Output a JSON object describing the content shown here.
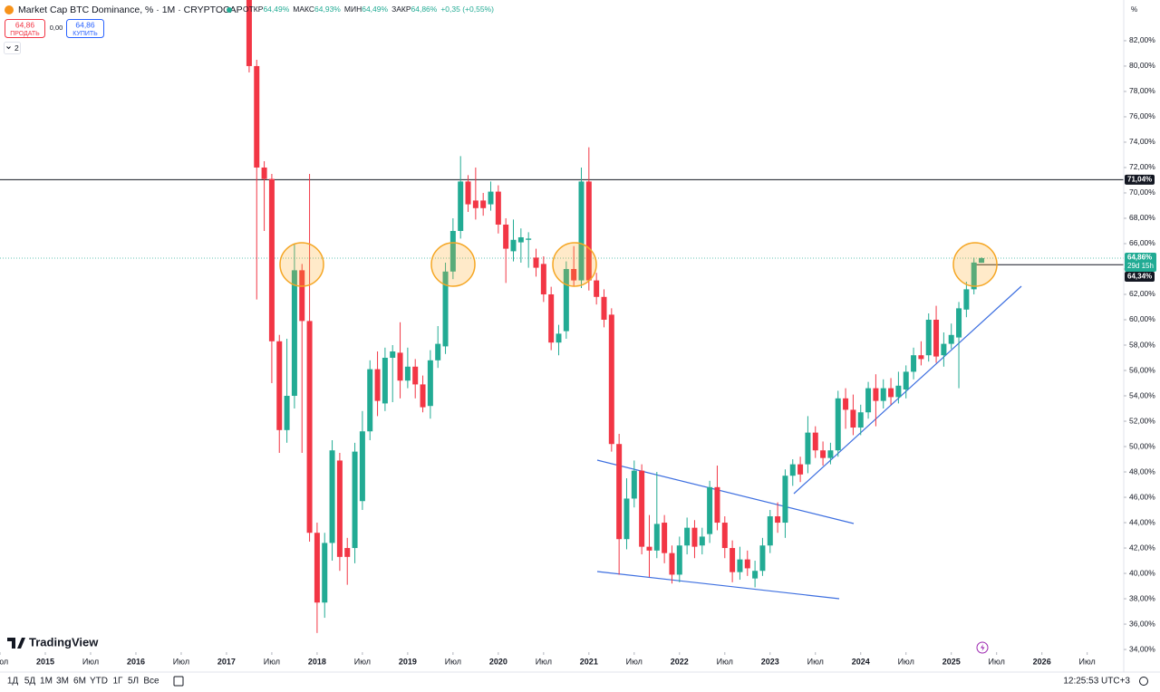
{
  "header": {
    "title": "Market Cap BTC Dominance, % · 1M · CRYPTOCAP",
    "ohlc": [
      {
        "label": "ОТКР",
        "value": "64,49%"
      },
      {
        "label": "МАКС",
        "value": "64,93%"
      },
      {
        "label": "МИН",
        "value": "64,49%"
      },
      {
        "label": "ЗАКР",
        "value": "64,86%"
      }
    ],
    "change": "+0,35 (+0,55%)"
  },
  "trade": {
    "sell_price": "64,86",
    "sell": "ПРОДАТЬ",
    "spread": "0,00",
    "buy_price": "64,86",
    "buy": "КУПИТЬ"
  },
  "indicators_count": 2,
  "scale_mode": "%",
  "logo": "TradingView",
  "toolbar": {
    "ranges": [
      "1Д",
      "5Д",
      "1М",
      "3М",
      "6М",
      "YTD",
      "1Г",
      "5Л",
      "Все"
    ],
    "clock": "12:25:53 UTC+3"
  },
  "chart_data": {
    "type": "candlestick",
    "up_color": "#22ab94",
    "down_color": "#f23645",
    "grid": false,
    "x": [
      "2017-04",
      "2017-05",
      "2017-06",
      "2017-07",
      "2017-08",
      "2017-09",
      "2017-10",
      "2017-11",
      "2017-12",
      "2018-01",
      "2018-02",
      "2018-03",
      "2018-04",
      "2018-05",
      "2018-06",
      "2018-07",
      "2018-08",
      "2018-09",
      "2018-10",
      "2018-11",
      "2018-12",
      "2019-01",
      "2019-02",
      "2019-03",
      "2019-04",
      "2019-05",
      "2019-06",
      "2019-07",
      "2019-08",
      "2019-09",
      "2019-10",
      "2019-11",
      "2019-12",
      "2020-01",
      "2020-02",
      "2020-03",
      "2020-04",
      "2020-05",
      "2020-06",
      "2020-07",
      "2020-08",
      "2020-09",
      "2020-10",
      "2020-11",
      "2020-12",
      "2021-01",
      "2021-02",
      "2021-03",
      "2021-04",
      "2021-05",
      "2021-06",
      "2021-07",
      "2021-08",
      "2021-09",
      "2021-10",
      "2021-11",
      "2021-12",
      "2022-01",
      "2022-02",
      "2022-03",
      "2022-04",
      "2022-05",
      "2022-06",
      "2022-07",
      "2022-08",
      "2022-09",
      "2022-10",
      "2022-11",
      "2022-12",
      "2023-01",
      "2023-02",
      "2023-03",
      "2023-04",
      "2023-05",
      "2023-06",
      "2023-07",
      "2023-08",
      "2023-09",
      "2023-10",
      "2023-11",
      "2023-12",
      "2024-01",
      "2024-02",
      "2024-03",
      "2024-04",
      "2024-05",
      "2024-06",
      "2024-07",
      "2024-08",
      "2024-09",
      "2024-10",
      "2024-11",
      "2024-12",
      "2025-01",
      "2025-02",
      "2025-03",
      "2025-04",
      "2025-05"
    ],
    "open": [
      85.5,
      80,
      72,
      71.1,
      58.3,
      51.3,
      54,
      63.9,
      59.9,
      43.2,
      37.7,
      42.4,
      48.9,
      42,
      42,
      45.7,
      51.2,
      56.1,
      53.4,
      57,
      57.4,
      55.2,
      56.3,
      54.9,
      53.2,
      56.8,
      57.9,
      63.8,
      67,
      70.9,
      69.4,
      69.4,
      69.1,
      70.1,
      67.5,
      65.4,
      66.1,
      66.3,
      64.9,
      64.4,
      62,
      58.2,
      59.1,
      64,
      63.1,
      70.9,
      63.1,
      61.8,
      60.4,
      50.2,
      42.7,
      45.9,
      48.1,
      42.1,
      41.8,
      44,
      41.6,
      39.9,
      42.2,
      43.6,
      42.2,
      43.1,
      46.8,
      44,
      42,
      40.1,
      41.1,
      39.6,
      40.2,
      42.2,
      44.5,
      44,
      47.7,
      48.6,
      48.6,
      51.1,
      49.7,
      49.1,
      49.7,
      53.8,
      52.9,
      51.5,
      52.7,
      54.6,
      53.6,
      54.6,
      53.9,
      54.5,
      55.9,
      57.2,
      57.2,
      60,
      57.2,
      58.1,
      58.6,
      60.8,
      62.4,
      64.49
    ],
    "high": [
      86.5,
      80.5,
      72.5,
      71.5,
      58.8,
      58.5,
      66,
      64.4,
      71.5,
      44,
      43.2,
      50.5,
      49.5,
      42.8,
      50.3,
      52.8,
      56.8,
      57.5,
      57.8,
      58,
      59.8,
      57.8,
      56.9,
      55.6,
      57.6,
      59.5,
      64.5,
      68,
      72.9,
      71.4,
      72,
      70,
      70.9,
      70.6,
      68,
      67.9,
      67.2,
      66.9,
      65.6,
      65,
      62.6,
      59.6,
      64.6,
      65.8,
      72,
      73.6,
      63.7,
      62.4,
      60.9,
      51,
      47.5,
      48.9,
      48.6,
      44.6,
      48,
      44.6,
      42.2,
      42.9,
      44.4,
      44.2,
      43.6,
      47.3,
      48.5,
      44.5,
      42.6,
      42.1,
      41.8,
      41,
      42.8,
      45,
      45.6,
      48.2,
      49,
      49.2,
      52.4,
      51.6,
      50.4,
      50.3,
      54.4,
      54.6,
      54.1,
      53.3,
      55.1,
      55.7,
      55.3,
      55.4,
      55.9,
      56.4,
      57.8,
      58.3,
      60.5,
      61.1,
      59,
      59.7,
      61.4,
      63,
      64.9,
      64.93
    ],
    "low": [
      79.5,
      61.6,
      67,
      55,
      49.5,
      50.3,
      53,
      49.5,
      42.5,
      35.3,
      36.5,
      41,
      40.2,
      39.1,
      40.8,
      45,
      50.5,
      52.4,
      52.8,
      53.5,
      53.8,
      54.6,
      53.8,
      52.7,
      52.2,
      56.2,
      57.3,
      63.2,
      66.4,
      68.5,
      67.9,
      68.2,
      68.6,
      66.8,
      62.9,
      64.6,
      64.5,
      64.1,
      63.4,
      61.4,
      57.6,
      57.2,
      58.5,
      62.6,
      62.5,
      62.3,
      61.2,
      59.4,
      49.6,
      39.9,
      41.9,
      45.2,
      41.5,
      39.7,
      41.2,
      40.8,
      39.2,
      39.3,
      41.5,
      41.2,
      41.5,
      42.4,
      43.4,
      41.2,
      39.3,
      39.5,
      39.8,
      38.9,
      39.8,
      41.6,
      43.2,
      42.8,
      46.9,
      47.2,
      47.9,
      49.1,
      48.5,
      48.6,
      49.2,
      51.4,
      50.9,
      50.9,
      52.2,
      51.6,
      53,
      53.3,
      53.4,
      53.8,
      55.3,
      56.4,
      56.7,
      56.6,
      56.3,
      57.7,
      54.6,
      60.2,
      62,
      64.49
    ],
    "close": [
      80,
      72,
      71.1,
      58.3,
      51.3,
      54,
      63.9,
      59.9,
      43.2,
      37.7,
      42.4,
      49.7,
      41.3,
      41.3,
      49.6,
      51.2,
      56.1,
      53.6,
      57,
      57.5,
      55.2,
      56.3,
      54.9,
      53.1,
      56.8,
      58.1,
      63.8,
      67,
      70.9,
      69.1,
      68.8,
      68.8,
      70.1,
      67.5,
      65.6,
      66.3,
      66.5,
      66.4,
      64.1,
      62,
      58.2,
      58.9,
      64,
      63.1,
      70.9,
      63.1,
      61.8,
      60,
      50.2,
      42.7,
      45.9,
      48.1,
      42.1,
      41.8,
      43.9,
      41.6,
      39.9,
      42.2,
      43.6,
      42.1,
      42.9,
      46.8,
      44,
      42,
      40.1,
      41.1,
      40.4,
      40.2,
      42.2,
      44.5,
      44,
      47.7,
      48.6,
      47.8,
      51.1,
      49.7,
      49.1,
      49.7,
      53.8,
      52.9,
      51.5,
      52.7,
      54.6,
      53.6,
      54.6,
      53.9,
      54.8,
      55.9,
      57.2,
      56.9,
      60,
      57.1,
      58.1,
      58.8,
      60.9,
      62.4,
      64.51,
      64.86
    ],
    "xlim": [
      "2014-07",
      "2026-11"
    ],
    "xticks": [
      {
        "value": "2014-07",
        "label": "Июл"
      },
      {
        "value": "2015-01",
        "label": "2015"
      },
      {
        "value": "2015-07",
        "label": "Июл"
      },
      {
        "value": "2016-01",
        "label": "2016"
      },
      {
        "value": "2016-07",
        "label": "Июл"
      },
      {
        "value": "2017-01",
        "label": "2017"
      },
      {
        "value": "2017-07",
        "label": "Июл"
      },
      {
        "value": "2018-01",
        "label": "2018"
      },
      {
        "value": "2018-07",
        "label": "Июл"
      },
      {
        "value": "2019-01",
        "label": "2019"
      },
      {
        "value": "2019-07",
        "label": "Июл"
      },
      {
        "value": "2020-01",
        "label": "2020"
      },
      {
        "value": "2020-07",
        "label": "Июл"
      },
      {
        "value": "2021-01",
        "label": "2021"
      },
      {
        "value": "2021-07",
        "label": "Июл"
      },
      {
        "value": "2022-01",
        "label": "2022"
      },
      {
        "value": "2022-07",
        "label": "Июл"
      },
      {
        "value": "2023-01",
        "label": "2023"
      },
      {
        "value": "2023-07",
        "label": "Июл"
      },
      {
        "value": "2024-01",
        "label": "2024"
      },
      {
        "value": "2024-07",
        "label": "Июл"
      },
      {
        "value": "2025-01",
        "label": "2025"
      },
      {
        "value": "2025-07",
        "label": "Июл"
      },
      {
        "value": "2026-01",
        "label": "2026"
      },
      {
        "value": "2026-07",
        "label": "Июл"
      }
    ],
    "ylim": [
      33.79,
      85.21
    ],
    "yticks": [
      {
        "value": 34,
        "label": "34,00%"
      },
      {
        "value": 36,
        "label": "36,00%"
      },
      {
        "value": 38,
        "label": "38,00%"
      },
      {
        "value": 40,
        "label": "40,00%"
      },
      {
        "value": 42,
        "label": "42,00%"
      },
      {
        "value": 44,
        "label": "44,00%"
      },
      {
        "value": 46,
        "label": "46,00%"
      },
      {
        "value": 48,
        "label": "48,00%"
      },
      {
        "value": 50,
        "label": "50,00%"
      },
      {
        "value": 52,
        "label": "52,00%"
      },
      {
        "value": 54,
        "label": "54,00%"
      },
      {
        "value": 56,
        "label": "56,00%"
      },
      {
        "value": 58,
        "label": "58,00%"
      },
      {
        "value": 60,
        "label": "60,00%"
      },
      {
        "value": 62,
        "label": "62,00%"
      },
      {
        "value": 64,
        "label": "64,00%"
      },
      {
        "value": 66,
        "label": "66,00%"
      },
      {
        "value": 68,
        "label": "68,00%"
      },
      {
        "value": 70,
        "label": "70,00%"
      },
      {
        "value": 72,
        "label": "72,00%"
      },
      {
        "value": 74,
        "label": "74,00%"
      },
      {
        "value": 76,
        "label": "76,00%"
      },
      {
        "value": 78,
        "label": "78,00%"
      },
      {
        "value": 80,
        "label": "80,00%"
      },
      {
        "value": 82,
        "label": "82,00%"
      }
    ],
    "hline": {
      "value": 71.04,
      "label": "71,04%",
      "color": "#131722"
    },
    "last_price": {
      "value": 64.86,
      "label": "64,86%",
      "countdown": "29d 15h",
      "color": "#22ab94"
    },
    "prev_line": {
      "value": 64.34,
      "label": "64,34%",
      "start": "2025-04",
      "color": "#131722"
    }
  }
}
